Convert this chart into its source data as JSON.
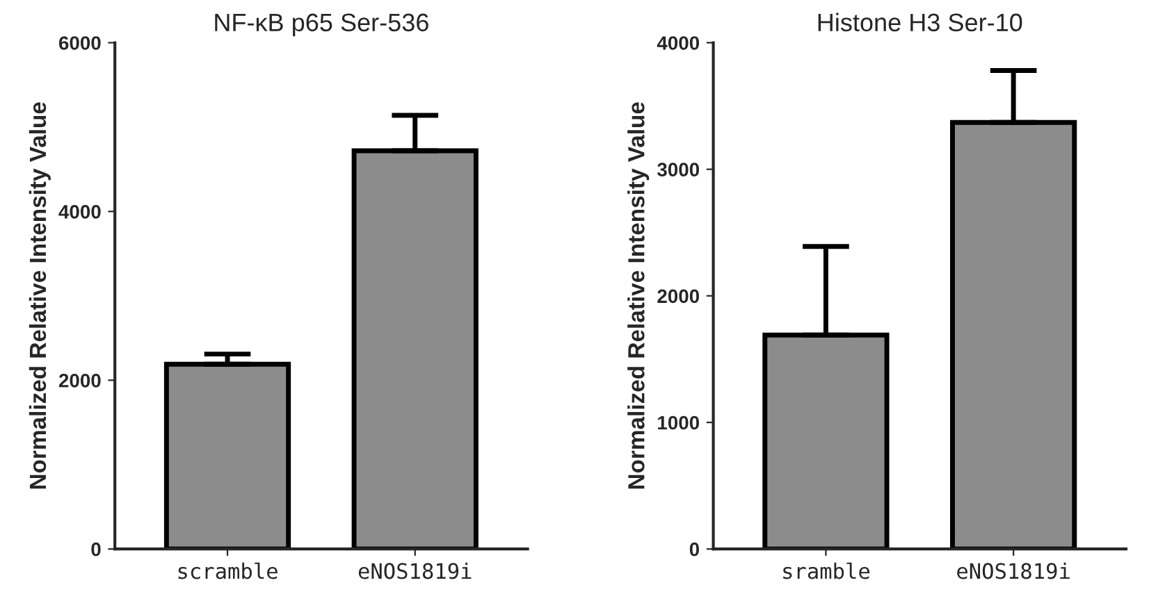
{
  "chart_data": [
    {
      "type": "bar",
      "title": "NF-κB p65 Ser-536",
      "ylabel": "Normalized Relative Intensity Value",
      "categories": [
        "scramble",
        "eNOS1819i"
      ],
      "values": [
        2190,
        4720
      ],
      "errors": [
        [
          2190,
          2310
        ],
        [
          4720,
          5140
        ]
      ],
      "color": "#8c8c8c",
      "ylim": [
        0,
        6000
      ],
      "yticks": [
        0,
        2000,
        4000,
        6000
      ],
      "grid": false
    },
    {
      "type": "bar",
      "title": "Histone H3 Ser-10",
      "ylabel": "Normalized Relative Intensity Value",
      "categories": [
        "sramble",
        "eNOS1819i"
      ],
      "values": [
        1690,
        3370
      ],
      "errors": [
        [
          1690,
          2390
        ],
        [
          3370,
          3780
        ]
      ],
      "color": "#8c8c8c",
      "ylim": [
        0,
        4000
      ],
      "yticks": [
        0,
        1000,
        2000,
        3000,
        4000
      ],
      "grid": false
    }
  ]
}
